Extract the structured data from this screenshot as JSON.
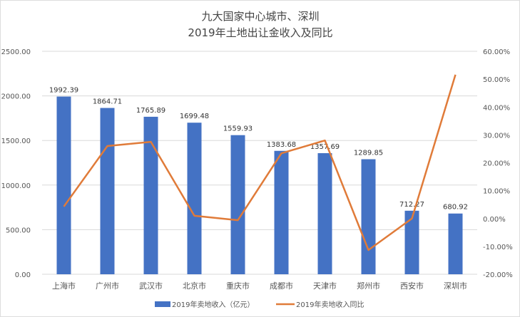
{
  "chart_data": {
    "type": "bar+line",
    "title": "九大国家中心城市、深圳",
    "subtitle": "2019年土地出让金收入及同比",
    "categories": [
      "上海市",
      "广州市",
      "武汉市",
      "北京市",
      "重庆市",
      "成都市",
      "天津市",
      "郑州市",
      "西安市",
      "深圳市"
    ],
    "series": [
      {
        "name": "2019年卖地收入（亿元）",
        "type": "bar",
        "axis": "left",
        "color": "#4472C4",
        "values": [
          1992.39,
          1864.71,
          1765.89,
          1699.48,
          1559.93,
          1383.68,
          1357.69,
          1289.85,
          712.27,
          680.92
        ],
        "labels": [
          "1992.39",
          "1864.71",
          "1765.89",
          "1699.48",
          "1559.93",
          "1383.68",
          "1357.69",
          "1289.85",
          "712.27",
          "680.92"
        ]
      },
      {
        "name": "2019年卖地收入同比",
        "type": "line",
        "axis": "right",
        "color": "#E07B39",
        "values": [
          4.3,
          26.0,
          27.5,
          1.0,
          -0.6,
          23.4,
          28.0,
          -11.3,
          0.0,
          51.6
        ]
      }
    ],
    "left_axis": {
      "min": 0,
      "max": 2500,
      "step": 500,
      "ticks": [
        "0.00",
        "500.00",
        "1000.00",
        "1500.00",
        "2000.00",
        "2500.00"
      ]
    },
    "right_axis": {
      "min": -20,
      "max": 60,
      "step": 10,
      "ticks": [
        "-20.00%",
        "-10.00%",
        "0.00%",
        "10.00%",
        "20.00%",
        "30.00%",
        "40.00%",
        "50.00%",
        "60.00%"
      ]
    },
    "grid": true,
    "legend": "bottom"
  }
}
